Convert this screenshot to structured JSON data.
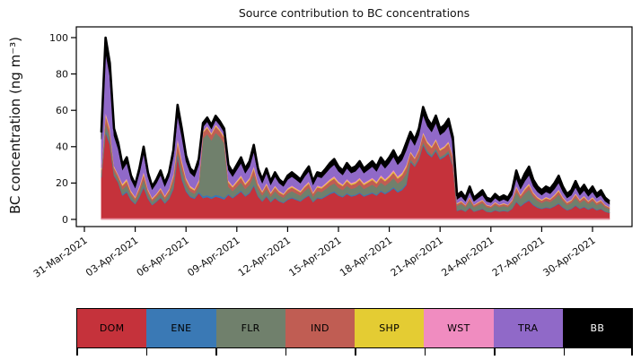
{
  "chart_data": {
    "type": "area",
    "stacked": true,
    "title": "Source contribution to BC concentrations",
    "ylabel": "BC concentration (ng m⁻³)",
    "xlabel": "",
    "grid": false,
    "yticks": [
      0,
      20,
      40,
      60,
      80,
      100
    ],
    "ylim": [
      0,
      106
    ],
    "xticks": {
      "days": [
        0,
        3,
        6,
        9,
        12,
        15,
        18,
        21,
        24,
        27,
        30
      ],
      "labels": [
        "31-Mar-2021",
        "03-Apr-2021",
        "06-Apr-2021",
        "09-Apr-2021",
        "12-Apr-2021",
        "15-Apr-2021",
        "18-Apr-2021",
        "21-Apr-2021",
        "24-Apr-2021",
        "27-Apr-2021",
        "30-Apr-2021"
      ]
    },
    "x_days": {
      "start": 1.0,
      "step": 0.25,
      "count": 121,
      "epoch_label": "days after 31-Mar-2021 00:00"
    },
    "outline": {
      "color": "#000000",
      "width": 2.6
    },
    "baseline_edge_color": "#f3b0c4",
    "legend": {
      "position": "bottom-colorbar"
    },
    "series": [
      {
        "name": "DOM",
        "color": "#c5323b",
        "label_color": "#000000",
        "values": [
          23,
          48,
          41.3,
          24,
          20.2,
          13.2,
          15,
          10.6,
          8.4,
          12.3,
          17.6,
          11.4,
          7.9,
          9.7,
          11.9,
          8.8,
          11.4,
          16.7,
          34.5,
          22,
          15.4,
          12.3,
          11.4,
          14.5,
          11.7,
          12.3,
          11.4,
          12.5,
          11.9,
          11,
          13.5,
          11.7,
          13.5,
          15.3,
          12.6,
          14.4,
          18.5,
          12.6,
          9.9,
          12.6,
          9.5,
          11.7,
          9.9,
          9,
          10.8,
          11.7,
          10.8,
          9.9,
          11.7,
          13.1,
          9.5,
          11.7,
          11.3,
          12.6,
          14,
          14.9,
          13.1,
          12.2,
          14,
          12.6,
          13.1,
          14.4,
          12.6,
          13.5,
          14.4,
          13.1,
          15.3,
          14,
          15.3,
          17.1,
          14.9,
          16.2,
          18.9,
          31.7,
          29,
          33,
          40.9,
          36.3,
          34.3,
          37.6,
          33,
          34.3,
          36.3,
          29.7,
          4.7,
          5.4,
          4.3,
          6.5,
          4.3,
          5,
          5.8,
          4.3,
          4,
          5,
          4.3,
          4.7,
          4.3,
          5.8,
          9.7,
          7.2,
          9,
          10.4,
          7.9,
          6.5,
          5.8,
          6.5,
          6.1,
          7.2,
          8.6,
          6.5,
          5,
          5.8,
          7.6,
          5.8,
          6.8,
          5.4,
          6.5,
          5,
          5.8,
          4.3,
          3.6
        ]
      },
      {
        "name": "ENE",
        "color": "#3a79b5",
        "label_color": "#000000",
        "values": [
          0.5,
          1,
          0.9,
          0.5,
          0.4,
          0.6,
          0.7,
          0.5,
          0.4,
          0.6,
          0.8,
          0.5,
          0.4,
          0.4,
          0.5,
          0.4,
          0.5,
          0.8,
          1.3,
          1,
          0.7,
          0.6,
          0.5,
          0.7,
          1.1,
          1.1,
          1,
          1.1,
          1.1,
          1,
          0.6,
          0.5,
          0.6,
          0.7,
          0.6,
          0.6,
          0.8,
          0.6,
          0.4,
          0.6,
          0.4,
          0.5,
          0.4,
          0.4,
          0.5,
          0.5,
          0.5,
          0.4,
          0.5,
          0.6,
          0.4,
          0.5,
          0.5,
          0.6,
          0.6,
          0.7,
          0.6,
          0.5,
          0.6,
          0.6,
          0.6,
          0.6,
          0.6,
          0.6,
          0.6,
          0.6,
          0.7,
          0.6,
          0.7,
          0.8,
          0.7,
          0.7,
          0.8,
          0.5,
          0.4,
          0.5,
          0.6,
          0.6,
          0.5,
          0.6,
          0.5,
          0.5,
          0.6,
          0.5,
          0.3,
          0.3,
          0.2,
          0.4,
          0.2,
          0.3,
          0.3,
          0.2,
          0.2,
          0.3,
          0.2,
          0.3,
          0.2,
          0.3,
          0.5,
          0.4,
          0.5,
          0.6,
          0.4,
          0.4,
          0.3,
          0.4,
          0.3,
          0.4,
          0.5,
          0.4,
          0.3,
          0.3,
          0.4,
          0.3,
          0.4,
          0.3,
          0.4,
          0.3,
          0.3,
          0.2,
          0.2
        ]
      },
      {
        "name": "FLR",
        "color": "#70806c",
        "label_color": "#000000",
        "values": [
          1.9,
          4,
          3.4,
          2,
          1.7,
          2.7,
          3.1,
          2.2,
          1.7,
          2.5,
          3.6,
          2.3,
          1.6,
          2,
          2.4,
          1.8,
          2.3,
          3.4,
          2,
          4.5,
          3.2,
          2.5,
          2.3,
          3,
          31.8,
          33.6,
          31.2,
          34.2,
          32.4,
          30,
          3.9,
          3.4,
          3.9,
          4.4,
          3.6,
          4.2,
          5.3,
          3.6,
          2.9,
          3.6,
          2.7,
          3.4,
          2.9,
          2.6,
          3.1,
          3.4,
          3.1,
          2.9,
          3.4,
          3.8,
          2.7,
          3.4,
          3.3,
          3.6,
          4,
          4.3,
          3.8,
          3.5,
          4,
          3.6,
          3.8,
          4.2,
          3.6,
          3.9,
          4.2,
          3.8,
          4.4,
          4,
          4.4,
          4.9,
          4.3,
          4.7,
          5.5,
          1,
          0.9,
          1,
          1.2,
          1.1,
          1,
          1.1,
          1,
          1,
          1.1,
          0.9,
          2.5,
          2.9,
          2.3,
          3.4,
          2.3,
          2.7,
          3,
          2.3,
          2.1,
          2.7,
          2.3,
          2.5,
          2.3,
          3,
          5.1,
          3.8,
          4.8,
          5.5,
          4.2,
          3.4,
          3,
          3.4,
          3.2,
          3.8,
          4.6,
          3.4,
          2.7,
          3,
          4,
          3,
          3.6,
          2.9,
          3.4,
          2.7,
          3,
          2.3,
          1.9
        ]
      },
      {
        "name": "IND",
        "color": "#c05d53",
        "label_color": "#000000",
        "values": [
          1.9,
          4,
          3.4,
          2,
          1.7,
          2.1,
          2.4,
          1.7,
          1.3,
          2,
          2.8,
          1.8,
          1.3,
          1.5,
          1.9,
          1.4,
          1.8,
          2.7,
          4.4,
          3.5,
          2.5,
          2,
          1.8,
          2.3,
          3.2,
          3.4,
          3.1,
          3.4,
          3.2,
          3,
          2.4,
          2.1,
          2.4,
          2.7,
          2.2,
          2.6,
          3.3,
          2.2,
          1.8,
          2.2,
          1.7,
          2.1,
          1.8,
          1.6,
          1.9,
          2.1,
          1.9,
          1.8,
          2.1,
          2.3,
          1.7,
          2.1,
          2,
          2.2,
          2.5,
          2.6,
          2.3,
          2.2,
          2.5,
          2.2,
          2.3,
          2.6,
          2.2,
          2.4,
          2.6,
          2.3,
          2.7,
          2.5,
          2.7,
          3,
          2.6,
          2.9,
          3.4,
          3.4,
          3.1,
          3.5,
          4.3,
          3.9,
          3.6,
          4,
          3.5,
          3.6,
          3.9,
          3.2,
          1,
          1.2,
          1,
          1.4,
          1,
          1.1,
          1.3,
          1,
          0.9,
          1.1,
          1,
          1,
          1,
          1.3,
          2.2,
          1.6,
          2,
          2.3,
          1.8,
          1.4,
          1.3,
          1.4,
          1.4,
          1.6,
          1.9,
          1.4,
          1.1,
          1.3,
          1.7,
          1.3,
          1.5,
          1.2,
          1.4,
          1.1,
          1.3,
          1,
          0.8
        ]
      },
      {
        "name": "SHP",
        "color": "#e4cc33",
        "label_color": "#000000",
        "values": [
          0.5,
          1,
          0.9,
          0.5,
          0.4,
          0.6,
          0.7,
          0.5,
          0.4,
          0.6,
          0.8,
          0.5,
          0.4,
          0.4,
          0.5,
          0.4,
          0.5,
          0.8,
          1.3,
          1,
          0.7,
          0.6,
          0.5,
          0.7,
          0.5,
          0.6,
          0.5,
          0.6,
          0.5,
          0.5,
          0.6,
          0.5,
          0.6,
          0.7,
          0.6,
          0.6,
          0.8,
          0.6,
          0.4,
          0.6,
          0.4,
          0.5,
          0.4,
          0.4,
          0.5,
          0.5,
          0.5,
          0.4,
          0.5,
          0.6,
          0.4,
          0.5,
          0.5,
          0.6,
          0.6,
          0.7,
          0.6,
          0.5,
          0.6,
          0.6,
          0.6,
          0.6,
          0.6,
          0.6,
          0.6,
          0.6,
          0.7,
          0.6,
          0.7,
          0.8,
          0.7,
          0.7,
          0.8,
          0.5,
          0.4,
          0.5,
          0.6,
          0.6,
          0.5,
          0.6,
          0.5,
          0.5,
          0.6,
          0.5,
          0.3,
          0.3,
          0.2,
          0.4,
          0.2,
          0.3,
          0.3,
          0.2,
          0.2,
          0.3,
          0.2,
          0.3,
          0.2,
          0.3,
          0.5,
          0.4,
          0.5,
          0.6,
          0.4,
          0.4,
          0.3,
          0.4,
          0.3,
          0.4,
          0.5,
          0.4,
          0.3,
          0.3,
          0.4,
          0.3,
          0.4,
          0.3,
          0.4,
          0.3,
          0.3,
          0.2,
          0.2
        ]
      },
      {
        "name": "WST",
        "color": "#f08cc0",
        "label_color": "#000000",
        "values": [
          0.5,
          1,
          0.9,
          0.5,
          0.4,
          0.6,
          0.7,
          0.5,
          0.4,
          0.6,
          0.8,
          0.5,
          0.4,
          0.4,
          0.5,
          0.4,
          0.5,
          0.8,
          1.3,
          1,
          0.7,
          0.6,
          0.5,
          0.7,
          0.5,
          0.6,
          0.5,
          0.6,
          0.5,
          0.5,
          0.6,
          0.5,
          0.6,
          0.7,
          0.6,
          0.6,
          0.8,
          0.6,
          0.4,
          0.6,
          0.4,
          0.5,
          0.4,
          0.4,
          0.5,
          0.5,
          0.5,
          0.4,
          0.5,
          0.6,
          0.4,
          0.5,
          0.5,
          0.6,
          0.6,
          0.7,
          0.6,
          0.5,
          0.6,
          0.6,
          0.6,
          0.6,
          0.6,
          0.6,
          0.6,
          0.6,
          0.7,
          0.6,
          0.7,
          0.8,
          0.7,
          0.7,
          0.8,
          0.5,
          0.4,
          0.5,
          0.6,
          0.6,
          0.5,
          0.6,
          0.5,
          0.5,
          0.6,
          0.5,
          0.3,
          0.3,
          0.2,
          0.4,
          0.2,
          0.3,
          0.3,
          0.2,
          0.2,
          0.3,
          0.2,
          0.3,
          0.2,
          0.3,
          0.5,
          0.4,
          0.5,
          0.6,
          0.4,
          0.4,
          0.3,
          0.4,
          0.3,
          0.4,
          0.5,
          0.4,
          0.3,
          0.3,
          0.4,
          0.3,
          0.4,
          0.3,
          0.4,
          0.3,
          0.3,
          0.2,
          0.2
        ]
      },
      {
        "name": "TRA",
        "color": "#9069c8",
        "label_color": "#000000",
        "values": [
          15.8,
          33,
          28.4,
          16.5,
          13.9,
          7.5,
          8.5,
          6,
          4.8,
          7,
          10,
          6.5,
          4.5,
          5.5,
          6.8,
          5,
          6.5,
          9.5,
          12.5,
          12.5,
          8.8,
          7,
          6.5,
          8.3,
          2.1,
          2.2,
          2.1,
          2.3,
          2.2,
          2,
          5.7,
          4.9,
          5.7,
          6.5,
          5.3,
          6.1,
          7.8,
          5.3,
          4.2,
          5.3,
          4,
          4.9,
          4.2,
          3.8,
          4.6,
          4.9,
          4.6,
          4.2,
          4.9,
          5.5,
          4,
          4.9,
          4.8,
          5.3,
          5.9,
          6.3,
          5.5,
          5.1,
          5.9,
          5.3,
          5.5,
          6.1,
          5.3,
          5.7,
          6.1,
          5.5,
          6.5,
          5.9,
          6.5,
          7.2,
          6.3,
          6.8,
          8,
          7.2,
          6.6,
          7.5,
          9.3,
          8.3,
          7.8,
          8.6,
          7.5,
          7.8,
          8.3,
          6.8,
          2,
          2.3,
          1.8,
          2.7,
          1.8,
          2.1,
          2.4,
          1.8,
          1.7,
          2.1,
          1.8,
          2,
          1.8,
          2.4,
          4.1,
          3,
          3.8,
          4.4,
          3.3,
          2.7,
          2.4,
          2.7,
          2.6,
          3,
          3.6,
          2.7,
          2.1,
          2.4,
          3.2,
          2.4,
          2.9,
          2.3,
          2.7,
          2.1,
          2.4,
          1.8,
          1.5
        ]
      },
      {
        "name": "BB",
        "color": "#000000",
        "label_color": "#ffffff",
        "values": [
          3.8,
          8,
          6.9,
          4,
          3.4,
          2.7,
          3.1,
          2.2,
          1.7,
          2.5,
          3.6,
          2.3,
          1.6,
          2,
          2.4,
          1.8,
          2.3,
          3.4,
          5.7,
          4.5,
          3.2,
          2.5,
          2.3,
          3,
          2.1,
          2.2,
          2.1,
          2.3,
          2.2,
          2,
          2.7,
          2.3,
          2.7,
          3.1,
          2.5,
          2.9,
          3.7,
          2.5,
          2,
          2.5,
          1.9,
          2.3,
          2,
          1.8,
          2.2,
          2.3,
          2.2,
          2,
          2.3,
          2.6,
          1.9,
          2.3,
          2.3,
          2.5,
          2.8,
          3,
          2.6,
          2.4,
          2.8,
          2.5,
          2.6,
          2.9,
          2.5,
          2.7,
          2.9,
          2.6,
          3.1,
          2.8,
          3.1,
          3.4,
          3,
          3.2,
          3.8,
          3.4,
          3.1,
          3.5,
          4.3,
          3.9,
          3.6,
          4,
          3.5,
          3.6,
          3.9,
          3.2,
          2.1,
          2.4,
          1.9,
          2.9,
          1.9,
          2.2,
          2.6,
          1.9,
          1.8,
          2.2,
          1.9,
          2.1,
          1.9,
          2.6,
          4.3,
          3.2,
          4,
          4.6,
          3.5,
          2.9,
          2.6,
          2.9,
          2.7,
          3.2,
          3.8,
          2.9,
          2.2,
          2.6,
          3.4,
          2.6,
          3,
          2.4,
          2.9,
          2.2,
          2.6,
          1.9,
          1.6
        ]
      }
    ]
  }
}
